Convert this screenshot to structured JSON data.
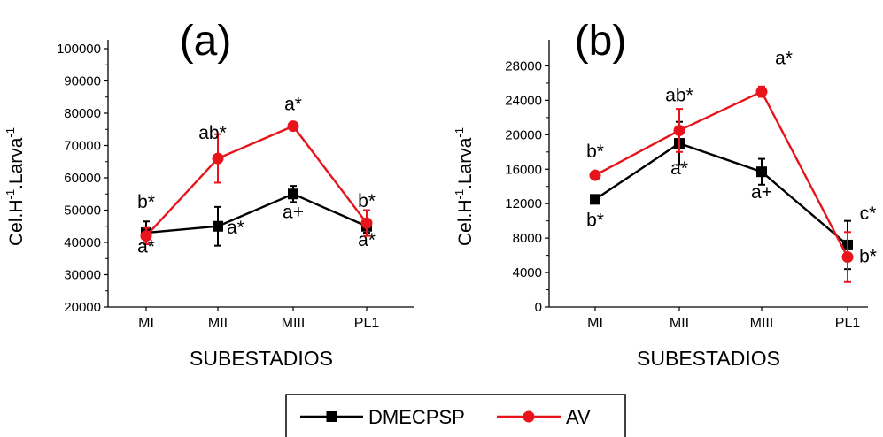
{
  "chart_data": [
    {
      "type": "line",
      "panel_label": "(a)",
      "xlabel": "SUBESTADIOS",
      "ylabel": "Cel.H-1.Larva-1",
      "ylabel_main": "Cel.H",
      "ylabel_sup1": "-1",
      "ylabel_mid": ".Larva",
      "ylabel_sup2": "-1",
      "categories": [
        "MI",
        "MII",
        "MIII",
        "PL1"
      ],
      "ylim": [
        20000,
        100000
      ],
      "yticks": [
        20000,
        30000,
        40000,
        50000,
        60000,
        70000,
        80000,
        90000,
        100000
      ],
      "ytick_labels": [
        "20000",
        "30000",
        "40000",
        "50000",
        "60000",
        "70000",
        "80000",
        "90000",
        "100000"
      ],
      "series": [
        {
          "name": "DMECPSP",
          "color": "#000000",
          "marker": "square",
          "values": [
            43000,
            45000,
            55000,
            45000
          ],
          "errors": [
            3500,
            6000,
            2500,
            2000
          ],
          "labels": [
            "b*",
            "a*",
            "a+",
            "a*"
          ]
        },
        {
          "name": "AV",
          "color": "#e8141b",
          "marker": "circle",
          "values": [
            42000,
            66000,
            76000,
            46000
          ],
          "errors": [
            2500,
            7500,
            1000,
            4000
          ],
          "labels": [
            "a*",
            "ab*",
            "a*",
            "b*"
          ]
        }
      ],
      "grid": false
    },
    {
      "type": "line",
      "panel_label": "(b)",
      "xlabel": "SUBESTADIOS",
      "ylabel": "Cel.H-1.Larva-1",
      "ylabel_main": "Cel.H",
      "ylabel_sup1": "-1",
      "ylabel_mid": ".Larva",
      "ylabel_sup2": "-1",
      "categories": [
        "MI",
        "MII",
        "MIII",
        "PL1"
      ],
      "ylim": [
        0,
        30000
      ],
      "yticks": [
        0,
        4000,
        8000,
        12000,
        16000,
        20000,
        24000,
        28000
      ],
      "ytick_labels": [
        "0",
        "4000",
        "8000",
        "12000",
        "16000",
        "20000",
        "24000",
        "28000"
      ],
      "series": [
        {
          "name": "DMECPSP",
          "color": "#000000",
          "marker": "square",
          "values": [
            12500,
            19000,
            15700,
            7200
          ],
          "errors": [
            0,
            2500,
            1500,
            2800
          ],
          "labels": [
            "b*",
            "a*",
            "a+",
            "c*"
          ]
        },
        {
          "name": "AV",
          "color": "#e8141b",
          "marker": "circle",
          "values": [
            15300,
            20500,
            25000,
            5800
          ],
          "errors": [
            0,
            2500,
            600,
            2900
          ],
          "labels": [
            "b*",
            "ab*",
            "a*",
            "b*"
          ]
        }
      ],
      "grid": false
    }
  ],
  "legend": {
    "placement": "bottom-center",
    "items": [
      {
        "name": "DMECPSP",
        "color": "#000000",
        "marker": "square"
      },
      {
        "name": "AV",
        "color": "#e8141b",
        "marker": "circle"
      }
    ]
  }
}
